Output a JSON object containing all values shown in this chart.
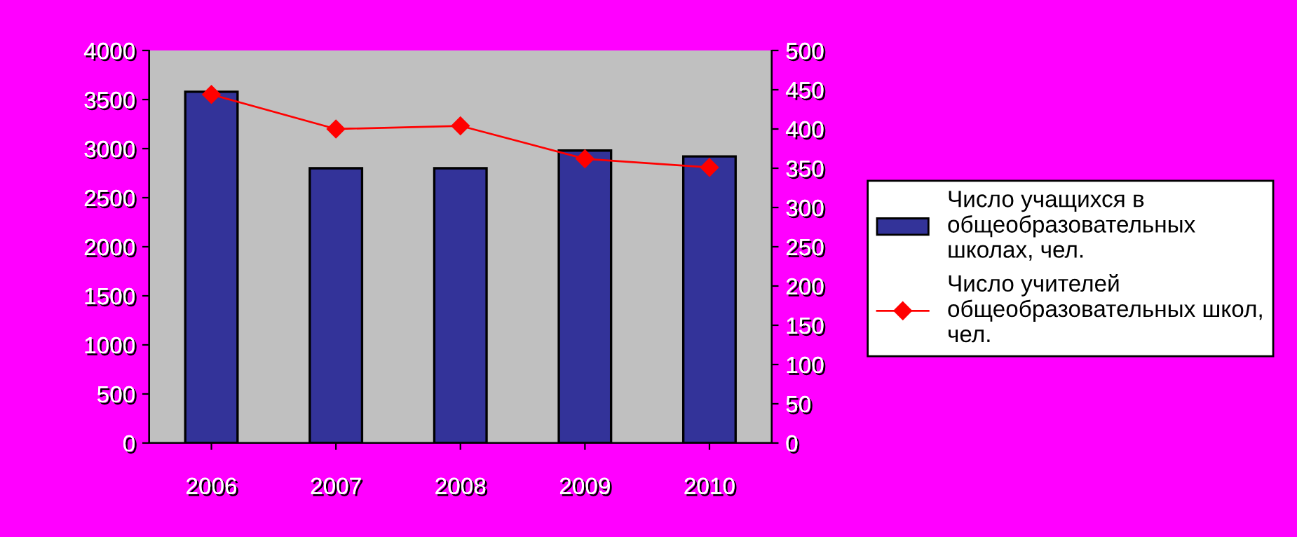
{
  "chart_data": {
    "type": "bar",
    "categories": [
      "2006",
      "2007",
      "2008",
      "2009",
      "2010"
    ],
    "series": [
      {
        "name": "Число учащихся в общеобразовательных школах, чел.",
        "color": "#333399",
        "values": [
          3580,
          2800,
          2800,
          2980,
          2920
        ]
      },
      {
        "name": "Число учителей общеобразовательных школ, чел.",
        "type": "line",
        "axis": "y2",
        "color": "#ff0000",
        "marker": "diamond",
        "values": [
          444,
          400,
          404,
          362,
          351
        ]
      }
    ],
    "ylim": [
      0,
      4000
    ],
    "yticks": [
      0,
      500,
      1000,
      1500,
      2000,
      2500,
      3000,
      3500,
      4000
    ],
    "y2lim": [
      0,
      500
    ],
    "y2ticks": [
      0,
      50,
      100,
      150,
      200,
      250,
      300,
      350,
      400,
      450,
      500
    ],
    "grid": false,
    "legend": "right"
  }
}
